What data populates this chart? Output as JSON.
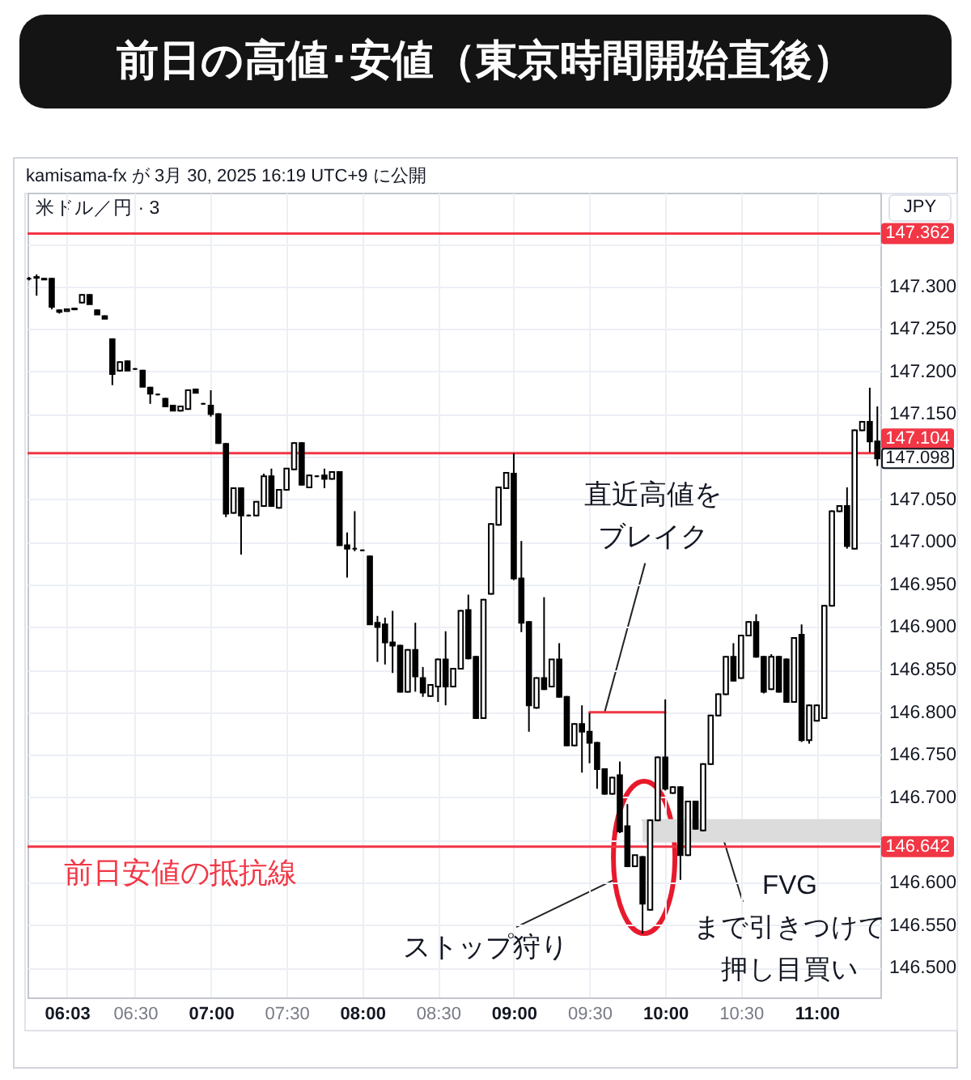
{
  "chart_data": {
    "type": "candlestick",
    "title": "前日の高値･安値（東京時間開始直後）",
    "subtitle": "米ドル／円 · 3",
    "ylabel": "JPY",
    "xlim": [
      5.79,
      11.42
    ],
    "xticks": [
      {
        "value": 6.05,
        "label": "06:03"
      },
      {
        "value": 6.5,
        "label": "06:30"
      },
      {
        "value": 7,
        "label": "07:00"
      },
      {
        "value": 7.5,
        "label": "07:30"
      },
      {
        "value": 8,
        "label": "08:00"
      },
      {
        "value": 8.5,
        "label": "08:30"
      },
      {
        "value": 9,
        "label": "09:00"
      },
      {
        "value": 9.5,
        "label": "09:30"
      },
      {
        "value": 10,
        "label": "10:00"
      },
      {
        "value": 10.5,
        "label": "10:30"
      },
      {
        "value": 11,
        "label": "11:00"
      }
    ],
    "ylim": [
      146.465,
      147.41
    ],
    "yticks": [
      {
        "value": 146.5,
        "label": "146.500"
      },
      {
        "value": 146.55,
        "label": "146.550"
      },
      {
        "value": 146.6,
        "label": "146.600"
      },
      {
        "value": 146.65,
        "label": null
      },
      {
        "value": 146.7,
        "label": "146.700"
      },
      {
        "value": 146.75,
        "label": "146.750"
      },
      {
        "value": 146.8,
        "label": "146.800"
      },
      {
        "value": 146.85,
        "label": "146.850"
      },
      {
        "value": 146.9,
        "label": "146.900"
      },
      {
        "value": 146.95,
        "label": "146.950"
      },
      {
        "value": 147,
        "label": "147.000"
      },
      {
        "value": 147.05,
        "label": "147.050"
      },
      {
        "value": 147.1,
        "label": null
      },
      {
        "value": 147.15,
        "label": "147.150"
      },
      {
        "value": 147.2,
        "label": "147.200"
      },
      {
        "value": 147.25,
        "label": "147.250"
      },
      {
        "value": 147.3,
        "label": "147.300"
      },
      {
        "value": 147.35,
        "label": null
      }
    ],
    "grid": true,
    "series": [
      {
        "type": "candlestick",
        "color": "#000000",
        "x": [
          5.8,
          5.85,
          5.9,
          5.95,
          6,
          6.05,
          6.1,
          6.15,
          6.2,
          6.25,
          6.3,
          6.35,
          6.4,
          6.45,
          6.5,
          6.55,
          6.6,
          6.65,
          6.7,
          6.75,
          6.8,
          6.85,
          6.9,
          6.95,
          7,
          7.05,
          7.1,
          7.15,
          7.2,
          7.25,
          7.3,
          7.35,
          7.4,
          7.45,
          7.5,
          7.55,
          7.6,
          7.65,
          7.7,
          7.75,
          7.8,
          7.85,
          7.9,
          7.95,
          8,
          8.05,
          8.1,
          8.15,
          8.2,
          8.25,
          8.3,
          8.35,
          8.4,
          8.45,
          8.5,
          8.55,
          8.6,
          8.65,
          8.7,
          8.75,
          8.8,
          8.85,
          8.9,
          8.95,
          9,
          9.05,
          9.1,
          9.15,
          9.2,
          9.25,
          9.3,
          9.35,
          9.4,
          9.45,
          9.5,
          9.55,
          9.6,
          9.65,
          9.7,
          9.75,
          9.8,
          9.85,
          9.9,
          9.95,
          10,
          10.05,
          10.1,
          10.15,
          10.2,
          10.25,
          10.3,
          10.35,
          10.4,
          10.45,
          10.5,
          10.55,
          10.6,
          10.65,
          10.7,
          10.75,
          10.8,
          10.85,
          10.9,
          10.95,
          11,
          11.05,
          11.1,
          11.15,
          11.2,
          11.25,
          11.3,
          11.35,
          11.4
        ],
        "ohlc": [
          [
            147.309,
            147.311,
            147.307,
            147.309
          ],
          [
            147.31,
            147.314,
            147.289,
            147.311
          ],
          [
            147.309,
            147.31,
            147.308,
            147.308
          ],
          [
            147.309,
            147.31,
            147.273,
            147.276
          ],
          [
            147.272,
            147.273,
            147.268,
            147.27
          ],
          [
            147.271,
            147.274,
            147.27,
            147.273
          ],
          [
            147.273,
            147.275,
            147.272,
            147.274
          ],
          [
            147.281,
            147.291,
            147.28,
            147.29
          ],
          [
            147.29,
            147.291,
            147.279,
            147.279
          ],
          [
            147.272,
            147.273,
            147.267,
            147.267
          ],
          [
            147.265,
            147.266,
            147.262,
            147.262
          ],
          [
            147.238,
            147.239,
            147.184,
            147.197
          ],
          [
            147.201,
            147.212,
            147.2,
            147.211
          ],
          [
            147.212,
            147.213,
            147.201,
            147.201
          ],
          [
            147.203,
            147.204,
            147.202,
            147.203
          ],
          [
            147.201,
            147.202,
            147.182,
            147.182
          ],
          [
            147.181,
            147.182,
            147.162,
            147.174
          ],
          [
            147.173,
            147.174,
            147.172,
            147.173
          ],
          [
            147.168,
            147.169,
            147.159,
            147.159
          ],
          [
            147.16,
            147.161,
            147.154,
            147.154
          ],
          [
            147.154,
            147.159,
            147.153,
            147.159
          ],
          [
            147.156,
            147.178,
            147.155,
            147.178
          ],
          [
            147.179,
            147.18,
            147.175,
            147.175
          ],
          [
            147.162,
            147.163,
            147.161,
            147.162
          ],
          [
            147.16,
            147.178,
            147.147,
            147.15
          ],
          [
            147.15,
            147.151,
            147.115,
            147.116
          ],
          [
            147.115,
            147.116,
            147.029,
            147.033
          ],
          [
            147.034,
            147.064,
            147.033,
            147.063
          ],
          [
            147.063,
            147.064,
            146.985,
            147.031
          ],
          [
            147.031,
            147.032,
            147.03,
            147.031
          ],
          [
            147.031,
            147.047,
            147.03,
            147.047
          ],
          [
            147.042,
            147.08,
            147.041,
            147.077
          ],
          [
            147.077,
            147.086,
            147.041,
            147.042
          ],
          [
            147.04,
            147.061,
            147.039,
            147.061
          ],
          [
            147.061,
            147.086,
            147.06,
            147.086
          ],
          [
            147.085,
            147.117,
            147.084,
            147.116
          ],
          [
            147.116,
            147.117,
            147.066,
            147.067
          ],
          [
            147.064,
            147.079,
            147.063,
            147.078
          ],
          [
            147.077,
            147.078,
            147.076,
            147.077
          ],
          [
            147.078,
            147.086,
            147.063,
            147.074
          ],
          [
            147.074,
            147.082,
            147.073,
            147.082
          ],
          [
            147.082,
            147.083,
            146.996,
            146.996
          ],
          [
            146.996,
            147.011,
            146.958,
            146.992
          ],
          [
            146.992,
            147.036,
            146.989,
            146.992
          ],
          [
            146.99,
            146.991,
            146.989,
            146.99
          ],
          [
            146.983,
            146.984,
            146.903,
            146.903
          ],
          [
            146.905,
            146.913,
            146.859,
            146.9
          ],
          [
            146.903,
            146.911,
            146.856,
            146.882
          ],
          [
            146.882,
            146.919,
            146.846,
            146.878
          ],
          [
            146.878,
            146.879,
            146.823,
            146.824
          ],
          [
            146.824,
            146.874,
            146.823,
            146.873
          ],
          [
            146.873,
            146.905,
            146.824,
            146.842
          ],
          [
            146.84,
            146.853,
            146.818,
            146.823
          ],
          [
            146.819,
            146.833,
            146.818,
            146.832
          ],
          [
            146.83,
            146.863,
            146.812,
            146.862
          ],
          [
            146.862,
            146.895,
            146.808,
            146.83
          ],
          [
            146.83,
            146.852,
            146.829,
            146.851
          ],
          [
            146.851,
            146.92,
            146.85,
            146.919
          ],
          [
            146.92,
            146.938,
            146.862,
            146.863
          ],
          [
            146.865,
            146.866,
            146.792,
            146.793
          ],
          [
            146.793,
            146.933,
            146.792,
            146.932
          ],
          [
            146.939,
            147.022,
            146.938,
            147.021
          ],
          [
            147.02,
            147.065,
            147.019,
            147.064
          ],
          [
            147.063,
            147.082,
            147.062,
            147.081
          ],
          [
            147.08,
            147.104,
            146.955,
            146.957
          ],
          [
            146.957,
            147.001,
            146.894,
            146.905
          ],
          [
            146.906,
            146.907,
            146.777,
            146.808
          ],
          [
            146.805,
            146.841,
            146.804,
            146.84
          ],
          [
            146.84,
            146.935,
            146.826,
            146.827
          ],
          [
            146.83,
            146.862,
            146.829,
            146.862
          ],
          [
            146.862,
            146.881,
            146.817,
            146.818
          ],
          [
            146.818,
            146.819,
            146.76,
            146.761
          ],
          [
            146.761,
            146.787,
            146.76,
            146.786
          ],
          [
            146.786,
            146.808,
            146.729,
            146.777
          ],
          [
            146.777,
            146.799,
            146.74,
            146.764
          ],
          [
            146.764,
            146.765,
            146.71,
            146.733
          ],
          [
            146.733,
            146.734,
            146.703,
            146.704
          ],
          [
            146.704,
            146.724,
            146.703,
            146.723
          ],
          [
            146.726,
            146.742,
            146.658,
            146.66
          ],
          [
            146.666,
            146.692,
            146.618,
            146.619
          ],
          [
            146.619,
            146.632,
            146.618,
            146.632
          ],
          [
            146.63,
            146.631,
            146.54,
            146.575
          ],
          [
            146.568,
            146.674,
            146.567,
            146.673
          ],
          [
            146.673,
            146.748,
            146.672,
            146.747
          ],
          [
            146.747,
            146.815,
            146.708,
            146.71
          ],
          [
            146.705,
            146.713,
            146.704,
            146.712
          ],
          [
            146.712,
            146.713,
            146.603,
            146.632
          ],
          [
            146.632,
            146.696,
            146.631,
            146.695
          ],
          [
            146.695,
            146.696,
            146.662,
            146.663
          ],
          [
            146.661,
            146.74,
            146.66,
            146.739
          ],
          [
            146.739,
            146.797,
            146.738,
            146.796
          ],
          [
            146.796,
            146.822,
            146.795,
            146.821
          ],
          [
            146.821,
            146.866,
            146.82,
            146.865
          ],
          [
            146.865,
            146.881,
            146.836,
            146.837
          ],
          [
            146.84,
            146.891,
            146.839,
            146.89
          ],
          [
            146.89,
            146.907,
            146.889,
            146.906
          ],
          [
            146.906,
            146.915,
            146.864,
            146.865
          ],
          [
            146.865,
            146.866,
            146.822,
            146.824
          ],
          [
            146.827,
            146.868,
            146.826,
            146.865
          ],
          [
            146.865,
            146.866,
            146.823,
            146.824
          ],
          [
            146.862,
            146.863,
            146.811,
            146.812
          ],
          [
            146.812,
            146.888,
            146.811,
            146.887
          ],
          [
            146.891,
            146.903,
            146.765,
            146.767
          ],
          [
            146.767,
            146.809,
            146.763,
            146.808
          ],
          [
            146.79,
            146.809,
            146.789,
            146.808
          ],
          [
            146.793,
            146.926,
            146.792,
            146.925
          ],
          [
            146.925,
            147.037,
            146.924,
            147.036
          ],
          [
            147.036,
            147.043,
            147.035,
            147.042
          ],
          [
            147.042,
            147.064,
            146.992,
            146.995
          ],
          [
            146.992,
            147.132,
            146.991,
            147.131
          ],
          [
            147.131,
            147.142,
            147.13,
            147.141
          ],
          [
            147.141,
            147.181,
            147.105,
            147.118
          ],
          [
            147.118,
            147.159,
            147.089,
            147.098
          ]
        ]
      },
      {
        "type": "line",
        "color": "#f23645",
        "x": [
          9.5,
          10
        ],
        "values": [
          146.8,
          146.8
        ]
      },
      {
        "type": "line",
        "color": "#dcdcdc",
        "x": [
          9.85,
          11.42
        ],
        "values": [
          146.673,
          146.673
        ],
        "lower": [
          146.647,
          146.647
        ],
        "upper": [
          146.673,
          146.673
        ]
      }
    ],
    "ref_lines": [
      {
        "axis": "y",
        "value": 147.362,
        "label": "147.362",
        "color": "#f23645"
      },
      {
        "axis": "y",
        "value": 147.104,
        "label": "147.104",
        "color": "#f23645"
      },
      {
        "axis": "y",
        "value": 146.642,
        "label": "146.642",
        "color": "#f23645"
      }
    ],
    "annotations": [
      "kamisama-fx が 3月 30, 2025 16:19 UTC+9 に公開",
      {
        "text": "前日安値の抵抗線",
        "x": 6.05,
        "y": 146.642
      },
      {
        "text": "直近高値をブレイク",
        "x": 9.6,
        "y": 146.8
      },
      {
        "text": "ストップ狩り",
        "x": 9.85,
        "y": 146.54
      },
      "FVGまで引きつけて押し目買い",
      "147.098"
    ]
  }
}
